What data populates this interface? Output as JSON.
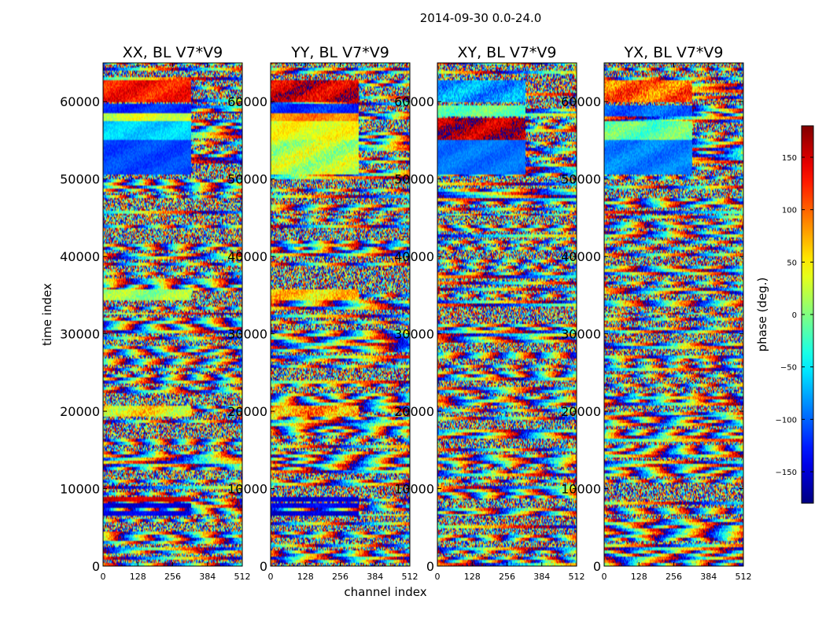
{
  "chart_data": {
    "type": "heatmap",
    "title": "2014-09-30 0.0-24.0",
    "xlabel": "channel index",
    "ylabel": "time index",
    "xlim": [
      0,
      512
    ],
    "ylim": [
      0,
      65000
    ],
    "xticks": [
      0,
      128,
      256,
      384,
      512
    ],
    "yticks": [
      0,
      10000,
      20000,
      30000,
      40000,
      50000,
      60000
    ],
    "panels": [
      {
        "title": "XX, BL V7*V9",
        "bands": [
          {
            "y": [
              50500,
              55000
            ],
            "x": [
              0,
              325
            ],
            "phase": -110,
            "jitter": 12
          },
          {
            "y": [
              55000,
              57500
            ],
            "x": [
              0,
              325
            ],
            "phase": -60,
            "jitter": 15
          },
          {
            "y": [
              57500,
              58600
            ],
            "x": [
              0,
              325
            ],
            "phase": 30,
            "jitter": 20
          },
          {
            "y": [
              58600,
              59800
            ],
            "x": [
              0,
              325
            ],
            "phase": -120,
            "jitter": 15
          },
          {
            "y": [
              60000,
              62700
            ],
            "x": [
              0,
              325
            ],
            "phase": 130,
            "jitter": 25
          },
          {
            "y": [
              34400,
              35700
            ],
            "x": [
              0,
              325
            ],
            "phase": 10,
            "jitter": 25
          },
          {
            "y": [
              19300,
              20800
            ],
            "x": [
              0,
              325
            ],
            "phase": 45,
            "jitter": 40
          },
          {
            "y": [
              8300,
              8900
            ],
            "x": [
              0,
              325
            ],
            "phase": 150,
            "jitter": 15
          },
          {
            "y": [
              7600,
              8200
            ],
            "x": [
              0,
              325
            ],
            "phase": -150,
            "jitter": 15
          },
          {
            "y": [
              6500,
              7200
            ],
            "x": [
              0,
              325
            ],
            "phase": -140,
            "jitter": 15
          }
        ]
      },
      {
        "title": "YY, BL V7*V9",
        "bands": [
          {
            "y": [
              50500,
              55000
            ],
            "x": [
              0,
              325
            ],
            "phase": 20,
            "jitter": 30
          },
          {
            "y": [
              55000,
              57500
            ],
            "x": [
              0,
              325
            ],
            "phase": 40,
            "jitter": 20
          },
          {
            "y": [
              57500,
              58600
            ],
            "x": [
              0,
              325
            ],
            "phase": 90,
            "jitter": 20
          },
          {
            "y": [
              58600,
              59800
            ],
            "x": [
              0,
              325
            ],
            "phase": -120,
            "jitter": 20
          },
          {
            "y": [
              60000,
              62700
            ],
            "x": [
              0,
              325
            ],
            "phase": 150,
            "jitter": 30
          },
          {
            "y": [
              34400,
              35700
            ],
            "x": [
              0,
              325
            ],
            "phase": 60,
            "jitter": 35
          },
          {
            "y": [
              19300,
              20800
            ],
            "x": [
              0,
              325
            ],
            "phase": 80,
            "jitter": 50
          },
          {
            "y": [
              8300,
              8900
            ],
            "x": [
              0,
              325
            ],
            "phase": -150,
            "jitter": 15
          },
          {
            "y": [
              7600,
              8200
            ],
            "x": [
              0,
              325
            ],
            "phase": -140,
            "jitter": 15
          },
          {
            "y": [
              6500,
              7200
            ],
            "x": [
              0,
              325
            ],
            "phase": -150,
            "jitter": 15
          }
        ]
      },
      {
        "title": "XY, BL V7*V9",
        "bands": [
          {
            "y": [
              50500,
              55000
            ],
            "x": [
              0,
              325
            ],
            "phase": -95,
            "jitter": 12
          },
          {
            "y": [
              55000,
              57800
            ],
            "x": [
              0,
              325
            ],
            "phase": 160,
            "jitter": 30
          },
          {
            "y": [
              58000,
              59500
            ],
            "x": [
              0,
              325
            ],
            "phase": -10,
            "jitter": 25
          },
          {
            "y": [
              60000,
              62700
            ],
            "x": [
              0,
              325
            ],
            "phase": -80,
            "jitter": 30
          }
        ]
      },
      {
        "title": "YX, BL V7*V9",
        "bands": [
          {
            "y": [
              50500,
              55000
            ],
            "x": [
              0,
              325
            ],
            "phase": -90,
            "jitter": 15
          },
          {
            "y": [
              55000,
              57500
            ],
            "x": [
              0,
              325
            ],
            "phase": -10,
            "jitter": 25
          },
          {
            "y": [
              58000,
              59500
            ],
            "x": [
              0,
              325
            ],
            "phase": -100,
            "jitter": 20
          },
          {
            "y": [
              60000,
              62700
            ],
            "x": [
              0,
              325
            ],
            "phase": 100,
            "jitter": 40
          }
        ]
      }
    ],
    "colorbar": {
      "label": "phase (deg.)",
      "range": [
        -180,
        180
      ],
      "ticks": [
        150,
        100,
        50,
        0,
        -50,
        -100,
        -150
      ],
      "tick_labels": [
        "150",
        "100",
        "50",
        "0",
        "−50",
        "−100",
        "−150"
      ],
      "colormap": "jet"
    }
  }
}
